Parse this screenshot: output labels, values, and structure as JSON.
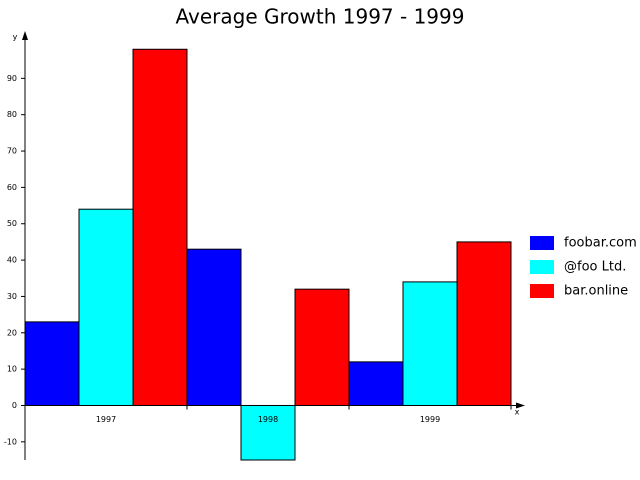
{
  "chart_data": {
    "type": "bar",
    "title": "Average Growth 1997 - 1999",
    "x_label": "x",
    "y_label": "y",
    "categories": [
      "1997",
      "1998",
      "1999"
    ],
    "series": [
      {
        "name": "foobar.com",
        "color": "#0000ff",
        "values": [
          23,
          43,
          12
        ]
      },
      {
        "name": "@foo Ltd.",
        "color": "#00ffff",
        "values": [
          54,
          -15,
          34
        ]
      },
      {
        "name": "bar.online",
        "color": "#ff0000",
        "values": [
          98,
          32,
          45
        ]
      }
    ],
    "ylim": [
      -15,
      100
    ],
    "yticks": [
      -10,
      0,
      10,
      20,
      30,
      40,
      50,
      60,
      70,
      80,
      90
    ],
    "legend": "right"
  }
}
